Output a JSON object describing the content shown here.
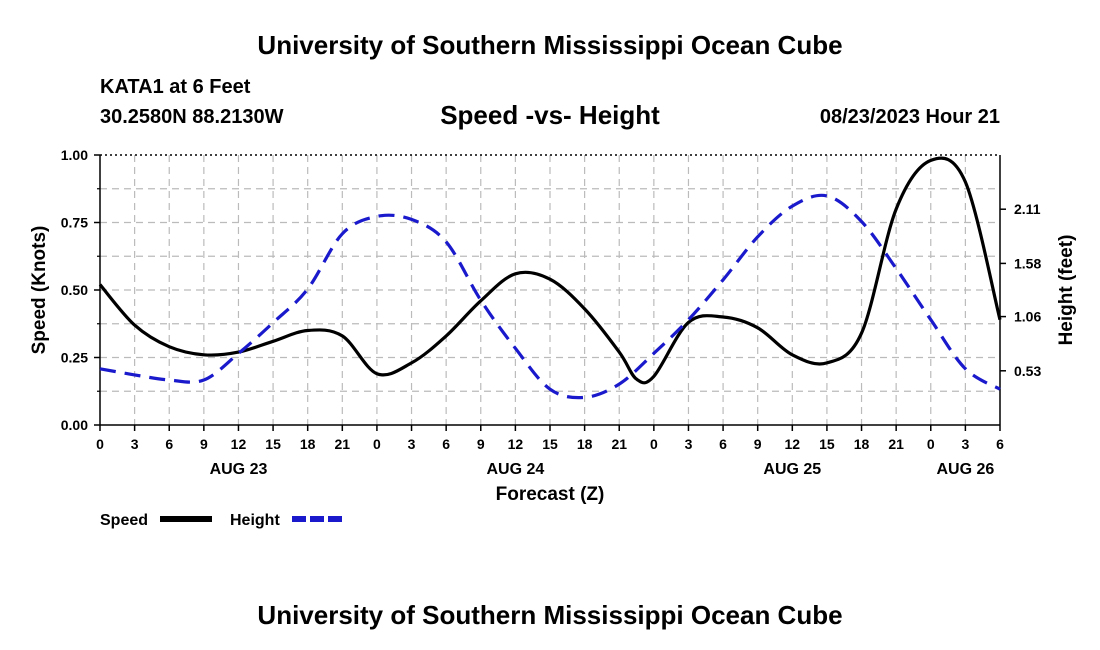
{
  "header": {
    "title": "University of Southern Mississippi Ocean Cube",
    "station": "KATA1 at 6 Feet",
    "coords": "30.2580N  88.2130W",
    "subtitle": "Speed -vs- Height",
    "datetime": "08/23/2023 Hour 21"
  },
  "footer": {
    "title": "University of Southern Mississippi Ocean Cube"
  },
  "colors": {
    "speed": "#000000",
    "height": "#1a1acc",
    "grid": "#bbbbbb"
  },
  "chart_data": {
    "type": "line",
    "title": "Speed -vs- Height",
    "xlabel": "Forecast (Z)",
    "ylabel": "Speed (Knots)",
    "y2label": "Height (feet)",
    "xlim": [
      0,
      78
    ],
    "ylim": [
      0,
      1.0
    ],
    "y2lim": [
      0.0,
      2.64
    ],
    "x_ticks": [
      0,
      3,
      6,
      9,
      12,
      15,
      18,
      21,
      24,
      27,
      30,
      33,
      36,
      39,
      42,
      45,
      48,
      51,
      54,
      57,
      60,
      63,
      66,
      69,
      72,
      75,
      78
    ],
    "x_tick_labels": [
      "0",
      "3",
      "6",
      "9",
      "12",
      "15",
      "18",
      "21",
      "0",
      "3",
      "6",
      "9",
      "12",
      "15",
      "18",
      "21",
      "0",
      "3",
      "6",
      "9",
      "12",
      "15",
      "18",
      "21",
      "0",
      "3",
      "6"
    ],
    "date_labels": [
      {
        "x": 12,
        "label": "AUG 23"
      },
      {
        "x": 36,
        "label": "AUG 24"
      },
      {
        "x": 60,
        "label": "AUG 25"
      },
      {
        "x": 75,
        "label": "AUG 26"
      }
    ],
    "y_ticks": [
      0.0,
      0.25,
      0.5,
      0.75,
      1.0
    ],
    "y_tick_labels": [
      "0.00",
      "0.25",
      "0.50",
      "0.75",
      "1.00"
    ],
    "y2_ticks": [
      0.53,
      1.06,
      1.58,
      2.11
    ],
    "y2_tick_labels": [
      "0.53",
      "1.06",
      "1.58",
      "2.11"
    ],
    "legend": [
      {
        "label": "Speed",
        "style": "solid"
      },
      {
        "label": "Height",
        "style": "dashed"
      }
    ],
    "series": [
      {
        "name": "Speed",
        "axis": "left",
        "x": [
          0,
          3,
          6,
          9,
          12,
          15,
          18,
          21,
          24,
          27,
          30,
          33,
          36,
          39,
          42,
          45,
          46.5,
          48,
          51,
          54,
          57,
          60,
          63,
          66,
          69,
          72,
          75,
          78
        ],
        "y": [
          0.52,
          0.37,
          0.29,
          0.26,
          0.27,
          0.31,
          0.35,
          0.33,
          0.19,
          0.23,
          0.33,
          0.46,
          0.56,
          0.54,
          0.43,
          0.27,
          0.17,
          0.18,
          0.38,
          0.4,
          0.36,
          0.26,
          0.23,
          0.34,
          0.8,
          0.98,
          0.9,
          0.39
        ]
      },
      {
        "name": "Height",
        "axis": "right",
        "x": [
          0,
          3,
          6,
          9,
          12,
          15,
          18,
          21,
          24,
          27,
          30,
          33,
          36,
          39,
          42,
          45,
          48,
          51,
          54,
          57,
          60,
          63,
          66,
          69,
          72,
          75,
          78
        ],
        "y": [
          0.55,
          0.49,
          0.44,
          0.44,
          0.7,
          1.0,
          1.33,
          1.87,
          2.04,
          2.01,
          1.79,
          1.22,
          0.75,
          0.35,
          0.27,
          0.4,
          0.7,
          1.03,
          1.42,
          1.84,
          2.14,
          2.24,
          1.99,
          1.53,
          1.03,
          0.55,
          0.35
        ]
      }
    ]
  }
}
